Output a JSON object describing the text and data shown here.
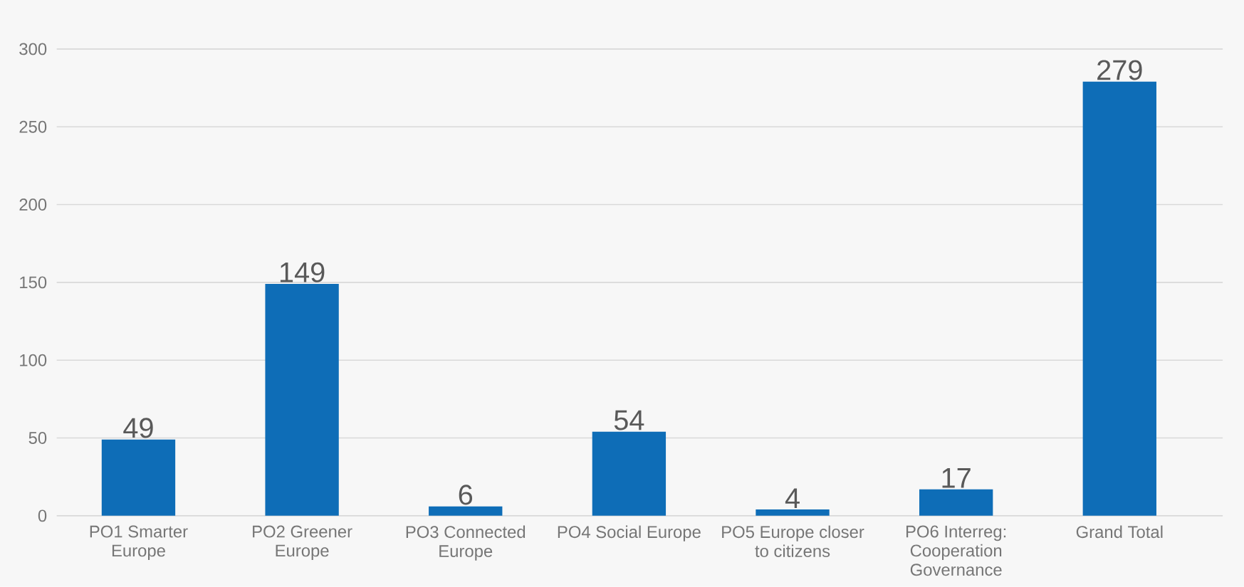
{
  "chart_data": {
    "type": "bar",
    "categories": [
      "PO1 Smarter Europe",
      "PO2 Greener Europe",
      "PO3 Connected Europe",
      "PO4 Social Europe",
      "PO5 Europe closer to citizens",
      "PO6 Interreg: Cooperation Governance",
      "Grand Total"
    ],
    "values": [
      49,
      149,
      6,
      54,
      4,
      17,
      279
    ],
    "color": "#0e6db7",
    "ylim": [
      0,
      300
    ],
    "yticks": [
      0,
      50,
      100,
      150,
      200,
      250,
      300
    ],
    "grid": "y",
    "data_labels": true
  }
}
